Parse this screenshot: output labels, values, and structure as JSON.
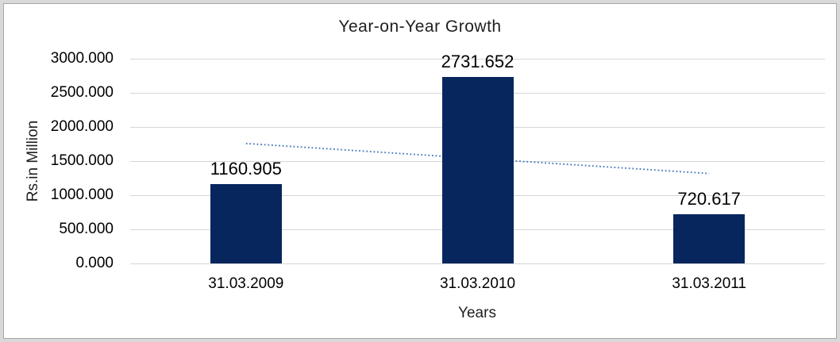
{
  "chart_data": {
    "type": "bar",
    "title": "Year-on-Year Growth",
    "xlabel": "Years",
    "ylabel": "Rs.in Million",
    "categories": [
      "31.03.2009",
      "31.03.2010",
      "31.03.2011"
    ],
    "values": [
      1160.905,
      2731.652,
      720.617
    ],
    "data_labels": [
      "1160.905",
      "2731.652",
      "720.617"
    ],
    "ylim": [
      0,
      3000
    ],
    "ytick_step": 500,
    "ytick_labels": [
      "0.000",
      "500.000",
      "1000.000",
      "1500.000",
      "2000.000",
      "2500.000",
      "3000.000"
    ],
    "grid": true,
    "legend": "none",
    "colors": {
      "bar": "#07265E",
      "trendline": "#4F81BD",
      "gridline": "#D6D6D6",
      "frame_band": "#D9D9D9",
      "frame_line": "#A6A6A6",
      "text": "#000000"
    },
    "trendline": {
      "type": "linear",
      "style": "dotted",
      "color": "#4F81BD"
    }
  }
}
